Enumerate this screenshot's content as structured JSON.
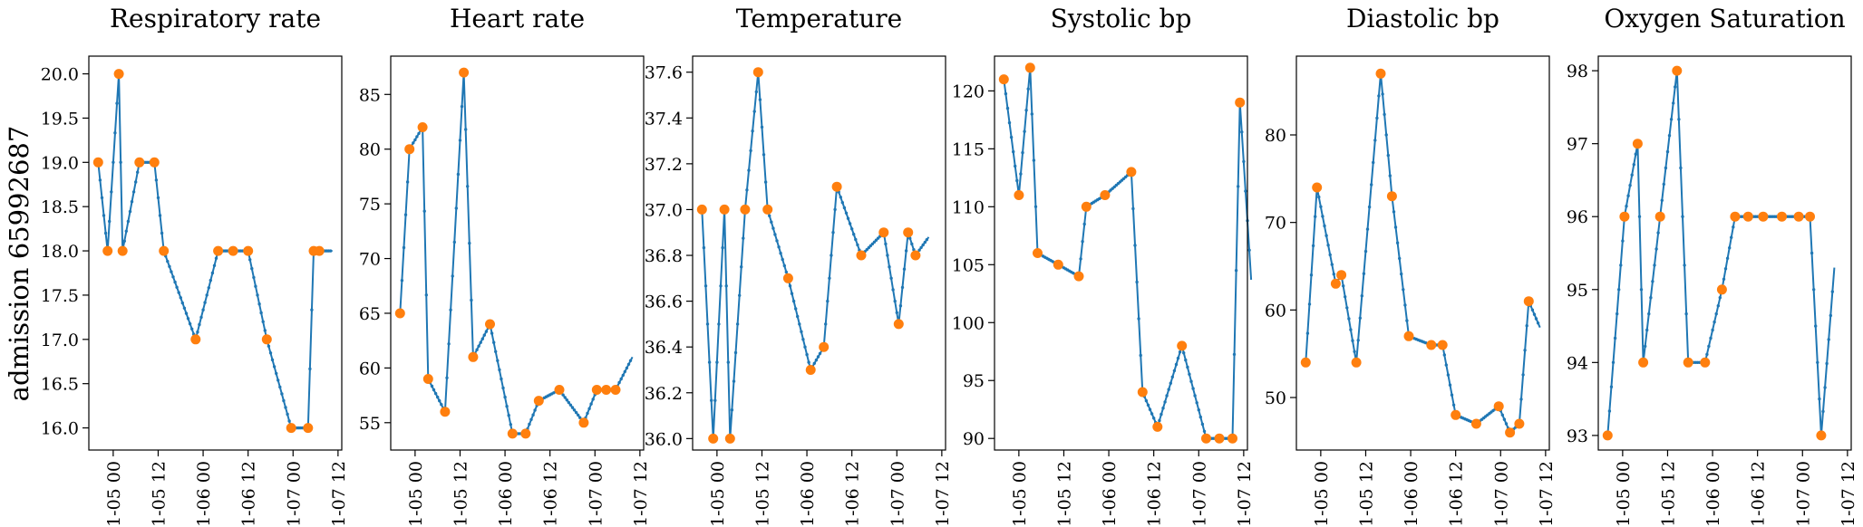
{
  "figure": {
    "row_label": "admission 65992687"
  },
  "colors": {
    "line": "#1f77b4",
    "observed": "#ff7f0e"
  },
  "x_tick_labels": [
    "01-05 00",
    "01-05 12",
    "01-06 00",
    "01-06 12",
    "01-07 00",
    "01-07 12"
  ],
  "chart_data": [
    {
      "type": "line",
      "title": "Respiratory rate",
      "ylim": [
        15.75,
        20.2
      ],
      "yticks": [
        16.0,
        16.5,
        17.0,
        17.5,
        18.0,
        18.5,
        19.0,
        19.5,
        20.0
      ],
      "ytick_labels": [
        "16.0",
        "16.5",
        "17.0",
        "17.5",
        "18.0",
        "18.5",
        "19.0",
        "19.5",
        "20.0"
      ],
      "observed": [
        [
          -4.0,
          19
        ],
        [
          -1.5,
          18
        ],
        [
          1.5,
          20
        ],
        [
          2.5,
          18
        ],
        [
          7.0,
          19
        ],
        [
          11.0,
          19
        ],
        [
          13.5,
          18
        ],
        [
          22.0,
          17
        ],
        [
          28.0,
          18
        ],
        [
          32.0,
          18
        ],
        [
          36.0,
          18
        ],
        [
          41.0,
          17
        ],
        [
          47.5,
          16
        ],
        [
          52.0,
          16
        ],
        [
          53.5,
          18
        ],
        [
          55.0,
          18
        ]
      ],
      "trend_end": [
        58.5,
        18
      ]
    },
    {
      "type": "line",
      "title": "Heart rate",
      "ylim": [
        52.5,
        88.5
      ],
      "yticks": [
        55,
        60,
        65,
        70,
        75,
        80,
        85
      ],
      "ytick_labels": [
        "55",
        "60",
        "65",
        "70",
        "75",
        "80",
        "85"
      ],
      "observed": [
        [
          -4.0,
          65
        ],
        [
          -1.5,
          80
        ],
        [
          2.0,
          82
        ],
        [
          3.5,
          59
        ],
        [
          8.0,
          56
        ],
        [
          13.0,
          87
        ],
        [
          15.5,
          61
        ],
        [
          20.0,
          64
        ],
        [
          26.0,
          54
        ],
        [
          29.5,
          54
        ],
        [
          33.0,
          57
        ],
        [
          38.5,
          58
        ],
        [
          45.0,
          55
        ],
        [
          48.5,
          58
        ],
        [
          51.0,
          58
        ],
        [
          53.5,
          58
        ]
      ],
      "trend_end": [
        58.0,
        61
      ]
    },
    {
      "type": "line",
      "title": "Temperature",
      "ylim": [
        35.95,
        37.67
      ],
      "yticks": [
        36.0,
        36.2,
        36.4,
        36.6,
        36.8,
        37.0,
        37.2,
        37.4,
        37.6
      ],
      "ytick_labels": [
        "36.0",
        "36.2",
        "36.4",
        "36.6",
        "36.8",
        "37.0",
        "37.2",
        "37.4",
        "37.6"
      ],
      "observed": [
        [
          -4.0,
          37.0
        ],
        [
          -1.0,
          36.0
        ],
        [
          2.0,
          37.0
        ],
        [
          3.5,
          36.0
        ],
        [
          7.5,
          37.0
        ],
        [
          11.0,
          37.6
        ],
        [
          13.5,
          37.0
        ],
        [
          19.0,
          36.7
        ],
        [
          25.0,
          36.3
        ],
        [
          28.5,
          36.4
        ],
        [
          32.0,
          37.1
        ],
        [
          38.5,
          36.8
        ],
        [
          44.5,
          36.9
        ],
        [
          48.5,
          36.5
        ],
        [
          51.0,
          36.9
        ],
        [
          53.0,
          36.8
        ]
      ],
      "trend_end": [
        56.5,
        36.88
      ]
    },
    {
      "type": "line",
      "title": "Systolic bp",
      "ylim": [
        89.0,
        123.0
      ],
      "yticks": [
        90,
        95,
        100,
        105,
        110,
        115,
        120
      ],
      "ytick_labels": [
        "90",
        "95",
        "100",
        "105",
        "110",
        "115",
        "120"
      ],
      "observed": [
        [
          -4.0,
          121
        ],
        [
          0.0,
          111
        ],
        [
          3.0,
          122
        ],
        [
          5.0,
          106
        ],
        [
          10.5,
          105
        ],
        [
          16.0,
          104
        ],
        [
          18.0,
          110
        ],
        [
          23.0,
          111
        ],
        [
          30.0,
          113
        ],
        [
          33.0,
          94
        ],
        [
          37.0,
          91
        ],
        [
          43.5,
          98
        ],
        [
          50.0,
          90
        ],
        [
          53.5,
          90
        ],
        [
          57.0,
          90
        ],
        [
          59.0,
          119
        ]
      ],
      "trend_end": [
        62.0,
        103.7
      ]
    },
    {
      "type": "line",
      "title": "Diastolic bp",
      "ylim": [
        44.0,
        89.0
      ],
      "yticks": [
        50,
        60,
        70,
        80
      ],
      "ytick_labels": [
        "50",
        "60",
        "70",
        "80"
      ],
      "observed": [
        [
          -4.0,
          54
        ],
        [
          -1.0,
          74
        ],
        [
          4.0,
          63
        ],
        [
          5.5,
          64
        ],
        [
          9.5,
          54
        ],
        [
          16.0,
          87
        ],
        [
          19.0,
          73
        ],
        [
          23.5,
          57
        ],
        [
          29.5,
          56
        ],
        [
          32.5,
          56
        ],
        [
          36.0,
          48
        ],
        [
          41.5,
          47
        ],
        [
          47.5,
          49
        ],
        [
          50.5,
          46
        ],
        [
          53.0,
          47
        ],
        [
          55.5,
          61
        ]
      ],
      "trend_end": [
        58.5,
        58
      ]
    },
    {
      "type": "line",
      "title": "Oxygen Saturation",
      "ylim": [
        92.8,
        98.2
      ],
      "yticks": [
        93,
        94,
        95,
        96,
        97,
        98
      ],
      "ytick_labels": [
        "93",
        "94",
        "95",
        "96",
        "97",
        "98"
      ],
      "observed": [
        [
          -4.0,
          93
        ],
        [
          0.5,
          96
        ],
        [
          4.0,
          97
        ],
        [
          5.5,
          94
        ],
        [
          10.0,
          96
        ],
        [
          14.5,
          98
        ],
        [
          17.5,
          94
        ],
        [
          22.0,
          94
        ],
        [
          26.5,
          95
        ],
        [
          30.0,
          96
        ],
        [
          33.5,
          96
        ],
        [
          37.5,
          96
        ],
        [
          42.5,
          96
        ],
        [
          47.0,
          96
        ],
        [
          50.0,
          96
        ],
        [
          53.0,
          93
        ]
      ],
      "trend_end": [
        56.5,
        95.3
      ]
    }
  ]
}
